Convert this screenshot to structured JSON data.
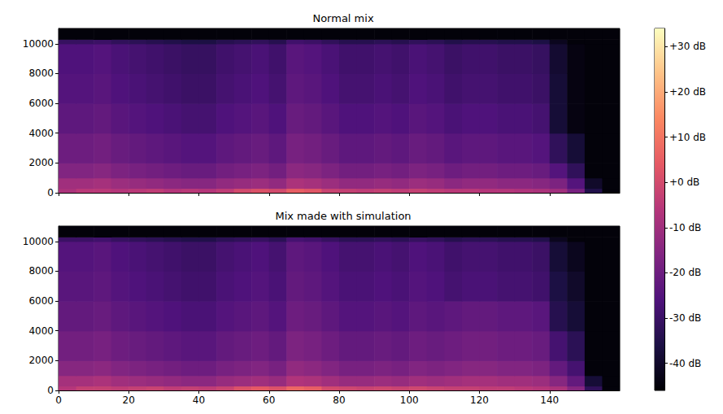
{
  "chart_data": [
    {
      "type": "heatmap",
      "title": "Normal mix",
      "x_bins": [
        0,
        5,
        10,
        15,
        20,
        25,
        30,
        35,
        40,
        45,
        50,
        55,
        60,
        65,
        70,
        75,
        80,
        85,
        90,
        95,
        100,
        105,
        110,
        115,
        120,
        125,
        130,
        135,
        140,
        145,
        150,
        155,
        160
      ],
      "y_bins": [
        0,
        300,
        1000,
        2000,
        4000,
        6000,
        8000,
        10000,
        10300,
        11025
      ],
      "cells": [
        [
          -8,
          -5,
          -5,
          -6,
          -5,
          -4,
          -6,
          -5,
          -6,
          -4,
          0,
          2,
          0,
          5,
          3,
          -2,
          -3,
          -4,
          -3,
          -4,
          -3,
          -4,
          -5,
          -5,
          -6,
          -6,
          -7,
          -8,
          -10,
          -18,
          -35,
          -45
        ],
        [
          -10,
          -10,
          -9,
          -11,
          -12,
          -13,
          -14,
          -15,
          -15,
          -13,
          -12,
          -11,
          -13,
          -8,
          -9,
          -11,
          -13,
          -13,
          -12,
          -13,
          -11,
          -12,
          -14,
          -13,
          -13,
          -14,
          -14,
          -15,
          -17,
          -25,
          -40,
          -45
        ],
        [
          -16,
          -16,
          -15,
          -17,
          -18,
          -19,
          -20,
          -21,
          -21,
          -19,
          -18,
          -17,
          -19,
          -14,
          -15,
          -17,
          -19,
          -19,
          -18,
          -19,
          -17,
          -18,
          -20,
          -19,
          -19,
          -20,
          -20,
          -21,
          -25,
          -32,
          -45,
          -45
        ],
        [
          -20,
          -20,
          -19,
          -21,
          -22,
          -23,
          -24,
          -25,
          -25,
          -23,
          -22,
          -21,
          -23,
          -18,
          -19,
          -21,
          -23,
          -23,
          -22,
          -23,
          -21,
          -22,
          -24,
          -23,
          -23,
          -24,
          -24,
          -25,
          -32,
          -38,
          -45,
          -45
        ],
        [
          -23,
          -23,
          -22,
          -24,
          -25,
          -26,
          -27,
          -28,
          -28,
          -26,
          -25,
          -24,
          -26,
          -21,
          -22,
          -24,
          -26,
          -26,
          -25,
          -26,
          -24,
          -25,
          -27,
          -26,
          -26,
          -27,
          -27,
          -28,
          -38,
          -44,
          -45,
          -45
        ],
        [
          -25,
          -25,
          -24,
          -26,
          -27,
          -28,
          -29,
          -30,
          -30,
          -28,
          -27,
          -26,
          -28,
          -23,
          -24,
          -26,
          -28,
          -28,
          -27,
          -28,
          -26,
          -27,
          -29,
          -28,
          -28,
          -29,
          -29,
          -30,
          -38,
          -44,
          -45,
          -45
        ],
        [
          -26,
          -26,
          -25,
          -27,
          -28,
          -29,
          -30,
          -31,
          -31,
          -29,
          -28,
          -27,
          -29,
          -24,
          -25,
          -27,
          -29,
          -29,
          -28,
          -29,
          -27,
          -28,
          -30,
          -29,
          -29,
          -30,
          -30,
          -31,
          -39,
          -44,
          -45,
          -45
        ],
        [
          -31,
          -31,
          -30,
          -32,
          -33,
          -34,
          -35,
          -36,
          -36,
          -34,
          -33,
          -32,
          -34,
          -29,
          -30,
          -32,
          -34,
          -34,
          -33,
          -34,
          -32,
          -33,
          -35,
          -34,
          -34,
          -35,
          -35,
          -36,
          -42,
          -45,
          -45,
          -45
        ],
        [
          -45,
          -45,
          -45,
          -45,
          -45,
          -45,
          -45,
          -45,
          -45,
          -45,
          -45,
          -45,
          -45,
          -45,
          -45,
          -45,
          -45,
          -45,
          -45,
          -45,
          -45,
          -45,
          -45,
          -45,
          -45,
          -45,
          -45,
          -45,
          -45,
          -45,
          -45,
          -45
        ]
      ],
      "xlim": [
        0,
        160
      ],
      "xticks": [
        0,
        20,
        40,
        60,
        80,
        100,
        120,
        140
      ],
      "ylim": [
        0,
        11025
      ],
      "yticks": [
        0,
        2000,
        4000,
        6000,
        8000,
        10000
      ],
      "tick_labels": "y",
      "grid": false
    },
    {
      "type": "heatmap",
      "title": "Mix made with simulation",
      "x_bins": [
        0,
        5,
        10,
        15,
        20,
        25,
        30,
        35,
        40,
        45,
        50,
        55,
        60,
        65,
        70,
        75,
        80,
        85,
        90,
        95,
        100,
        105,
        110,
        115,
        120,
        125,
        130,
        135,
        140,
        145,
        150,
        155,
        160
      ],
      "y_bins": [
        0,
        300,
        1000,
        2000,
        4000,
        6000,
        8000,
        10000,
        10300,
        11025
      ],
      "cells": [
        [
          -6,
          -3,
          -3,
          -4,
          -3,
          -2,
          -4,
          -3,
          -4,
          -2,
          2,
          4,
          2,
          7,
          5,
          0,
          -1,
          -2,
          -1,
          -2,
          -1,
          -2,
          -3,
          -3,
          -4,
          -4,
          -5,
          -6,
          -8,
          -15,
          -32,
          -45
        ],
        [
          -9,
          -9,
          -8,
          -10,
          -11,
          -12,
          -13,
          -14,
          -14,
          -12,
          -11,
          -10,
          -12,
          -7,
          -8,
          -10,
          -12,
          -12,
          -11,
          -12,
          -10,
          -11,
          -10,
          -9,
          -9,
          -10,
          -10,
          -11,
          -15,
          -22,
          -38,
          -45
        ],
        [
          -15,
          -15,
          -14,
          -16,
          -17,
          -18,
          -19,
          -20,
          -20,
          -18,
          -17,
          -16,
          -18,
          -13,
          -14,
          -16,
          -18,
          -18,
          -17,
          -18,
          -16,
          -17,
          -16,
          -15,
          -15,
          -16,
          -16,
          -17,
          -22,
          -28,
          -45,
          -45
        ],
        [
          -19,
          -19,
          -18,
          -20,
          -21,
          -22,
          -23,
          -24,
          -24,
          -22,
          -21,
          -20,
          -22,
          -17,
          -18,
          -20,
          -22,
          -22,
          -21,
          -22,
          -20,
          -21,
          -20,
          -19,
          -19,
          -20,
          -20,
          -21,
          -28,
          -33,
          -45,
          -45
        ],
        [
          -22,
          -22,
          -21,
          -23,
          -24,
          -25,
          -26,
          -27,
          -27,
          -25,
          -24,
          -23,
          -25,
          -20,
          -21,
          -23,
          -25,
          -25,
          -24,
          -25,
          -23,
          -24,
          -23,
          -22,
          -22,
          -23,
          -23,
          -24,
          -34,
          -38,
          -45,
          -45
        ],
        [
          -24,
          -24,
          -23,
          -25,
          -26,
          -27,
          -28,
          -29,
          -29,
          -27,
          -26,
          -25,
          -27,
          -22,
          -23,
          -25,
          -27,
          -27,
          -26,
          -27,
          -25,
          -26,
          -28,
          -27,
          -27,
          -28,
          -28,
          -29,
          -36,
          -40,
          -45,
          -45
        ],
        [
          -25,
          -25,
          -24,
          -26,
          -27,
          -28,
          -29,
          -30,
          -30,
          -28,
          -27,
          -26,
          -28,
          -23,
          -24,
          -26,
          -28,
          -28,
          -27,
          -28,
          -26,
          -27,
          -29,
          -28,
          -28,
          -29,
          -29,
          -30,
          -38,
          -42,
          -45,
          -45
        ],
        [
          -30,
          -30,
          -29,
          -31,
          -32,
          -33,
          -34,
          -35,
          -35,
          -33,
          -32,
          -31,
          -33,
          -28,
          -29,
          -31,
          -33,
          -33,
          -32,
          -33,
          -31,
          -32,
          -34,
          -33,
          -33,
          -34,
          -34,
          -35,
          -42,
          -45,
          -45,
          -45
        ],
        [
          -45,
          -45,
          -45,
          -45,
          -45,
          -45,
          -45,
          -45,
          -45,
          -45,
          -45,
          -45,
          -45,
          -45,
          -45,
          -45,
          -45,
          -45,
          -45,
          -45,
          -45,
          -45,
          -45,
          -45,
          -45,
          -45,
          -45,
          -45,
          -45,
          -45,
          -45,
          -45
        ]
      ],
      "xlim": [
        0,
        160
      ],
      "xticks": [
        0,
        20,
        40,
        60,
        80,
        100,
        120,
        140
      ],
      "ylim": [
        0,
        11025
      ],
      "yticks": [
        0,
        2000,
        4000,
        6000,
        8000,
        10000
      ],
      "tick_labels": true,
      "grid": false,
      "colorbar": {
        "range": [
          -46,
          34
        ],
        "ticks": [
          {
            "value": -40,
            "label": "-40 dB"
          },
          {
            "value": -30,
            "label": "-30 dB"
          },
          {
            "value": -20,
            "label": "-20 dB"
          },
          {
            "value": -10,
            "label": "-10 dB"
          },
          {
            "value": 0,
            "label": "+0 dB"
          },
          {
            "value": 10,
            "label": "+10 dB"
          },
          {
            "value": 20,
            "label": "+20 dB"
          },
          {
            "value": 30,
            "label": "+30 dB"
          }
        ]
      }
    }
  ]
}
